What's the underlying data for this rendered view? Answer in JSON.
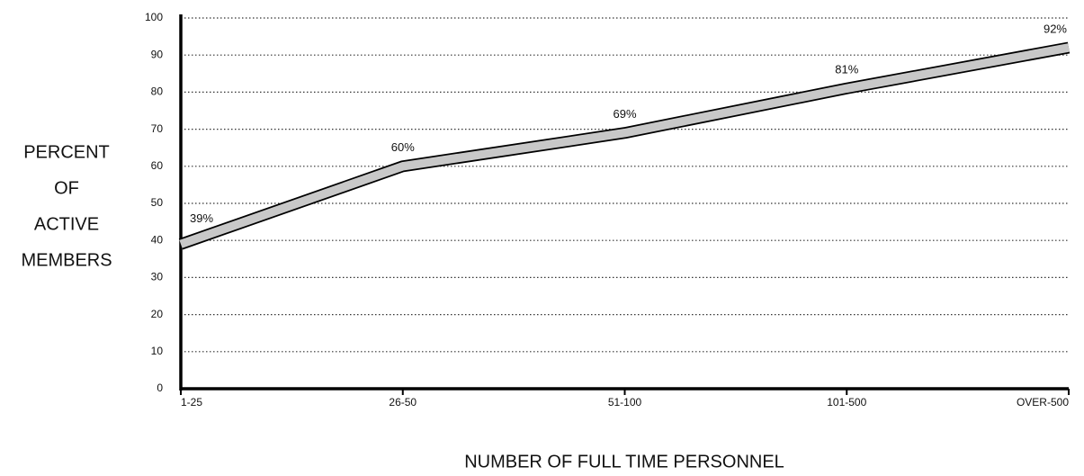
{
  "chart_data": {
    "type": "line",
    "ylabel": [
      "PERCENT",
      "OF",
      "ACTIVE",
      "MEMBERS"
    ],
    "xlabel": "NUMBER OF FULL TIME PERSONNEL",
    "categories": [
      "1-25",
      "26-50",
      "51-100",
      "101-500",
      "OVER-500"
    ],
    "series": [
      {
        "color": "#c8c8c8",
        "values": [
          39,
          60,
          69,
          81,
          92
        ],
        "value_labels": [
          "39%",
          "60%",
          "69%",
          "81%",
          "92%"
        ]
      }
    ],
    "ylim": [
      0,
      100
    ],
    "yticks": [
      0,
      10,
      20,
      30,
      40,
      50,
      60,
      70,
      80,
      90,
      100
    ],
    "grid": true
  }
}
